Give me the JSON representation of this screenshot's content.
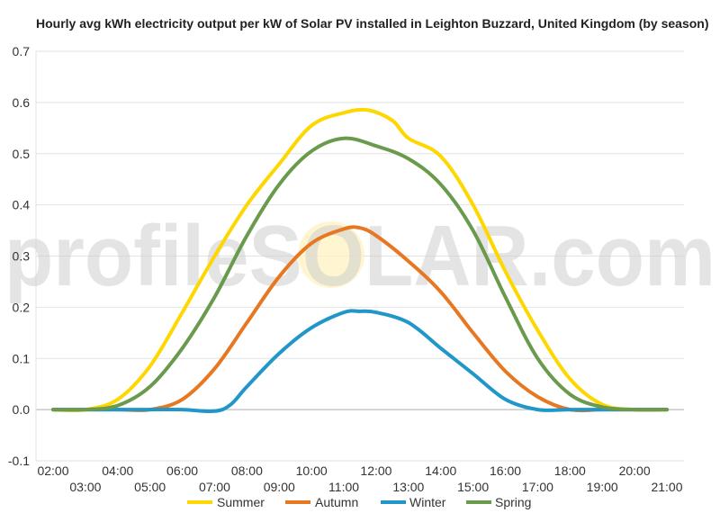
{
  "chart_data": {
    "type": "line",
    "title": "Hourly avg kWh electricity output per kW of Solar PV installed in Leighton Buzzard, United Kingdom (by season)",
    "xlabel": "",
    "ylabel": "",
    "ylim": [
      -0.1,
      0.7
    ],
    "yticks": [
      -0.1,
      0.0,
      0.1,
      0.2,
      0.3,
      0.4,
      0.5,
      0.6,
      0.7
    ],
    "ytick_labels": [
      "-0.1",
      "0.0",
      "0.1",
      "0.2",
      "0.3",
      "0.4",
      "0.5",
      "0.6",
      "0.7"
    ],
    "x_hours": [
      2,
      3,
      4,
      5,
      6,
      7,
      8,
      9,
      10,
      11,
      12,
      13,
      14,
      15,
      16,
      17,
      18,
      19,
      20,
      21
    ],
    "categories": [
      "02:00",
      "03:00",
      "04:00",
      "05:00",
      "06:00",
      "07:00",
      "08:00",
      "09:00",
      "10:00",
      "11:00",
      "12:00",
      "13:00",
      "14:00",
      "15:00",
      "16:00",
      "17:00",
      "18:00",
      "19:00",
      "20:00",
      "21:00"
    ],
    "grid": true,
    "legend_position": "bottom",
    "series": [
      {
        "name": "Summer",
        "color": "#ffd700",
        "points": [
          [
            2,
            0.0
          ],
          [
            3,
            0.0
          ],
          [
            4,
            0.02
          ],
          [
            5,
            0.085
          ],
          [
            6,
            0.19
          ],
          [
            7,
            0.3
          ],
          [
            8,
            0.4
          ],
          [
            9,
            0.48
          ],
          [
            10,
            0.555
          ],
          [
            11,
            0.58
          ],
          [
            11.75,
            0.585
          ],
          [
            12.5,
            0.565
          ],
          [
            13,
            0.53
          ],
          [
            14,
            0.495
          ],
          [
            15,
            0.4
          ],
          [
            16,
            0.27
          ],
          [
            17,
            0.155
          ],
          [
            18,
            0.06
          ],
          [
            19,
            0.01
          ],
          [
            20,
            0.0
          ],
          [
            21,
            0.0
          ]
        ]
      },
      {
        "name": "Autumn",
        "color": "#e87722",
        "points": [
          [
            2,
            0.0
          ],
          [
            3,
            0.0
          ],
          [
            4,
            0.0
          ],
          [
            5,
            0.0
          ],
          [
            6,
            0.02
          ],
          [
            7,
            0.08
          ],
          [
            8,
            0.17
          ],
          [
            9,
            0.26
          ],
          [
            10,
            0.325
          ],
          [
            11,
            0.353
          ],
          [
            11.5,
            0.355
          ],
          [
            12,
            0.34
          ],
          [
            13,
            0.29
          ],
          [
            14,
            0.23
          ],
          [
            15,
            0.15
          ],
          [
            16,
            0.075
          ],
          [
            17,
            0.025
          ],
          [
            18,
            0.0
          ],
          [
            19,
            0.0
          ],
          [
            20,
            0.0
          ],
          [
            21,
            0.0
          ]
        ]
      },
      {
        "name": "Winter",
        "color": "#2196c9",
        "points": [
          [
            2,
            0.0
          ],
          [
            3,
            0.0
          ],
          [
            4,
            0.0
          ],
          [
            5,
            0.0
          ],
          [
            6,
            0.0
          ],
          [
            7,
            -0.003
          ],
          [
            7.5,
            0.01
          ],
          [
            8,
            0.045
          ],
          [
            9,
            0.11
          ],
          [
            10,
            0.16
          ],
          [
            11,
            0.19
          ],
          [
            11.5,
            0.192
          ],
          [
            12,
            0.19
          ],
          [
            13,
            0.17
          ],
          [
            14,
            0.12
          ],
          [
            15,
            0.07
          ],
          [
            16,
            0.02
          ],
          [
            17,
            0.0
          ],
          [
            18,
            0.0
          ],
          [
            19,
            0.0
          ],
          [
            20,
            0.0
          ],
          [
            21,
            0.0
          ]
        ]
      },
      {
        "name": "Spring",
        "color": "#6a9a4c",
        "points": [
          [
            2,
            0.0
          ],
          [
            3,
            0.0
          ],
          [
            4,
            0.008
          ],
          [
            5,
            0.045
          ],
          [
            6,
            0.12
          ],
          [
            7,
            0.22
          ],
          [
            8,
            0.34
          ],
          [
            9,
            0.44
          ],
          [
            10,
            0.505
          ],
          [
            11,
            0.53
          ],
          [
            12,
            0.515
          ],
          [
            13,
            0.49
          ],
          [
            14,
            0.44
          ],
          [
            15,
            0.35
          ],
          [
            16,
            0.22
          ],
          [
            17,
            0.1
          ],
          [
            18,
            0.03
          ],
          [
            19,
            0.005
          ],
          [
            20,
            0.0
          ],
          [
            21,
            0.0
          ]
        ]
      }
    ],
    "watermark": "profileSOLAR.com"
  }
}
